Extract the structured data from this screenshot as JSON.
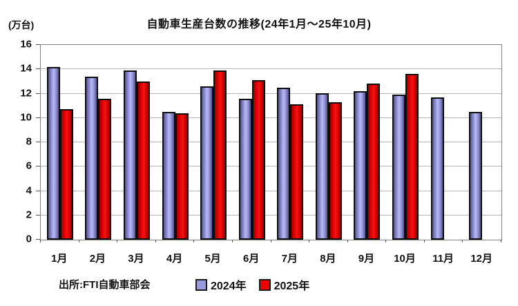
{
  "chart": {
    "title": "自動車生産台数の推移(24年1月～25年10月)",
    "unit_label": "(万台)",
    "source": "出所:FTI自動車部会"
  },
  "chart_data": {
    "type": "bar",
    "title": "自動車生産台数の推移(24年1月～25年10月)",
    "ylabel": "(万台)",
    "xlabel": "",
    "categories": [
      "1月",
      "2月",
      "3月",
      "4月",
      "5月",
      "6月",
      "7月",
      "8月",
      "9月",
      "10月",
      "11月",
      "12月"
    ],
    "series": [
      {
        "name": "2024年",
        "color": "#9999e0",
        "values": [
          14.2,
          13.4,
          13.9,
          10.5,
          12.6,
          11.6,
          12.5,
          12.0,
          12.2,
          11.9,
          11.7,
          10.5
        ]
      },
      {
        "name": "2025年",
        "color": "#ee0000",
        "values": [
          10.7,
          11.6,
          13.0,
          10.4,
          13.9,
          13.1,
          11.1,
          11.3,
          12.8,
          13.6,
          null,
          null
        ]
      }
    ],
    "ylim": [
      0,
      16
    ],
    "ytick_step": 2,
    "yticks": [
      0,
      2,
      4,
      6,
      8,
      10,
      12,
      14,
      16
    ],
    "grid": true,
    "legend_position": "bottom",
    "annotations": []
  }
}
